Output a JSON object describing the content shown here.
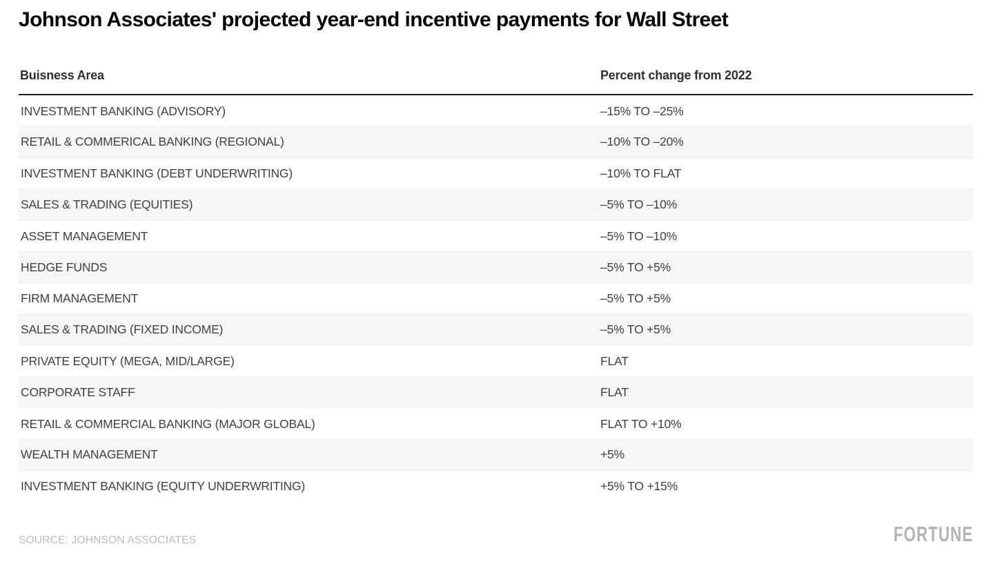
{
  "title": "Johnson Associates' projected year-end incentive payments for Wall Street",
  "chart_data": {
    "type": "table",
    "title": "Johnson Associates' projected year-end incentive payments for Wall Street",
    "columns": [
      "Buisness Area",
      "Percent change from 2022"
    ],
    "rows": [
      [
        "INVESTMENT BANKING (ADVISORY)",
        "–15% TO –25%"
      ],
      [
        "RETAIL & COMMERICAL BANKING (REGIONAL)",
        "–10% TO –20%"
      ],
      [
        "INVESTMENT BANKING (DEBT UNDERWRITING)",
        "–10% TO FLAT"
      ],
      [
        "SALES & TRADING (EQUITIES)",
        "–5% TO –10%"
      ],
      [
        "ASSET MANAGEMENT",
        "–5% TO –10%"
      ],
      [
        "HEDGE FUNDS",
        "–5% TO +5%"
      ],
      [
        "FIRM MANAGEMENT",
        "–5% TO +5%"
      ],
      [
        "SALES & TRADING (FIXED INCOME)",
        "–5% TO +5%"
      ],
      [
        "PRIVATE EQUITY (MEGA, MID/LARGE)",
        "FLAT"
      ],
      [
        "CORPORATE STAFF",
        "FLAT"
      ],
      [
        "RETAIL & COMMERCIAL BANKING (MAJOR GLOBAL)",
        "FLAT TO +10%"
      ],
      [
        "WEALTH MANAGEMENT",
        "+5%"
      ],
      [
        "INVESTMENT BANKING (EQUITY UNDERWRITING)",
        "+5% TO +15%"
      ]
    ],
    "layout": {
      "stripe_pattern": "even rows shaded",
      "header_rule": "thick black underline",
      "grid": "off"
    }
  },
  "footer": {
    "source": "SOURCE: JOHNSON ASSOCIATES",
    "brand": "FORTUNE"
  },
  "colors": {
    "title_text": "#000000",
    "header_text": "#2e2e2e",
    "row_text": "#404040",
    "stripe_fill": "#f6f6f6",
    "stripe_border": "#ececec",
    "header_rule": "#1a1a1a",
    "muted_text": "#bcbcbc",
    "brand_gray": "#b3b3b3",
    "background": "#ffffff"
  }
}
